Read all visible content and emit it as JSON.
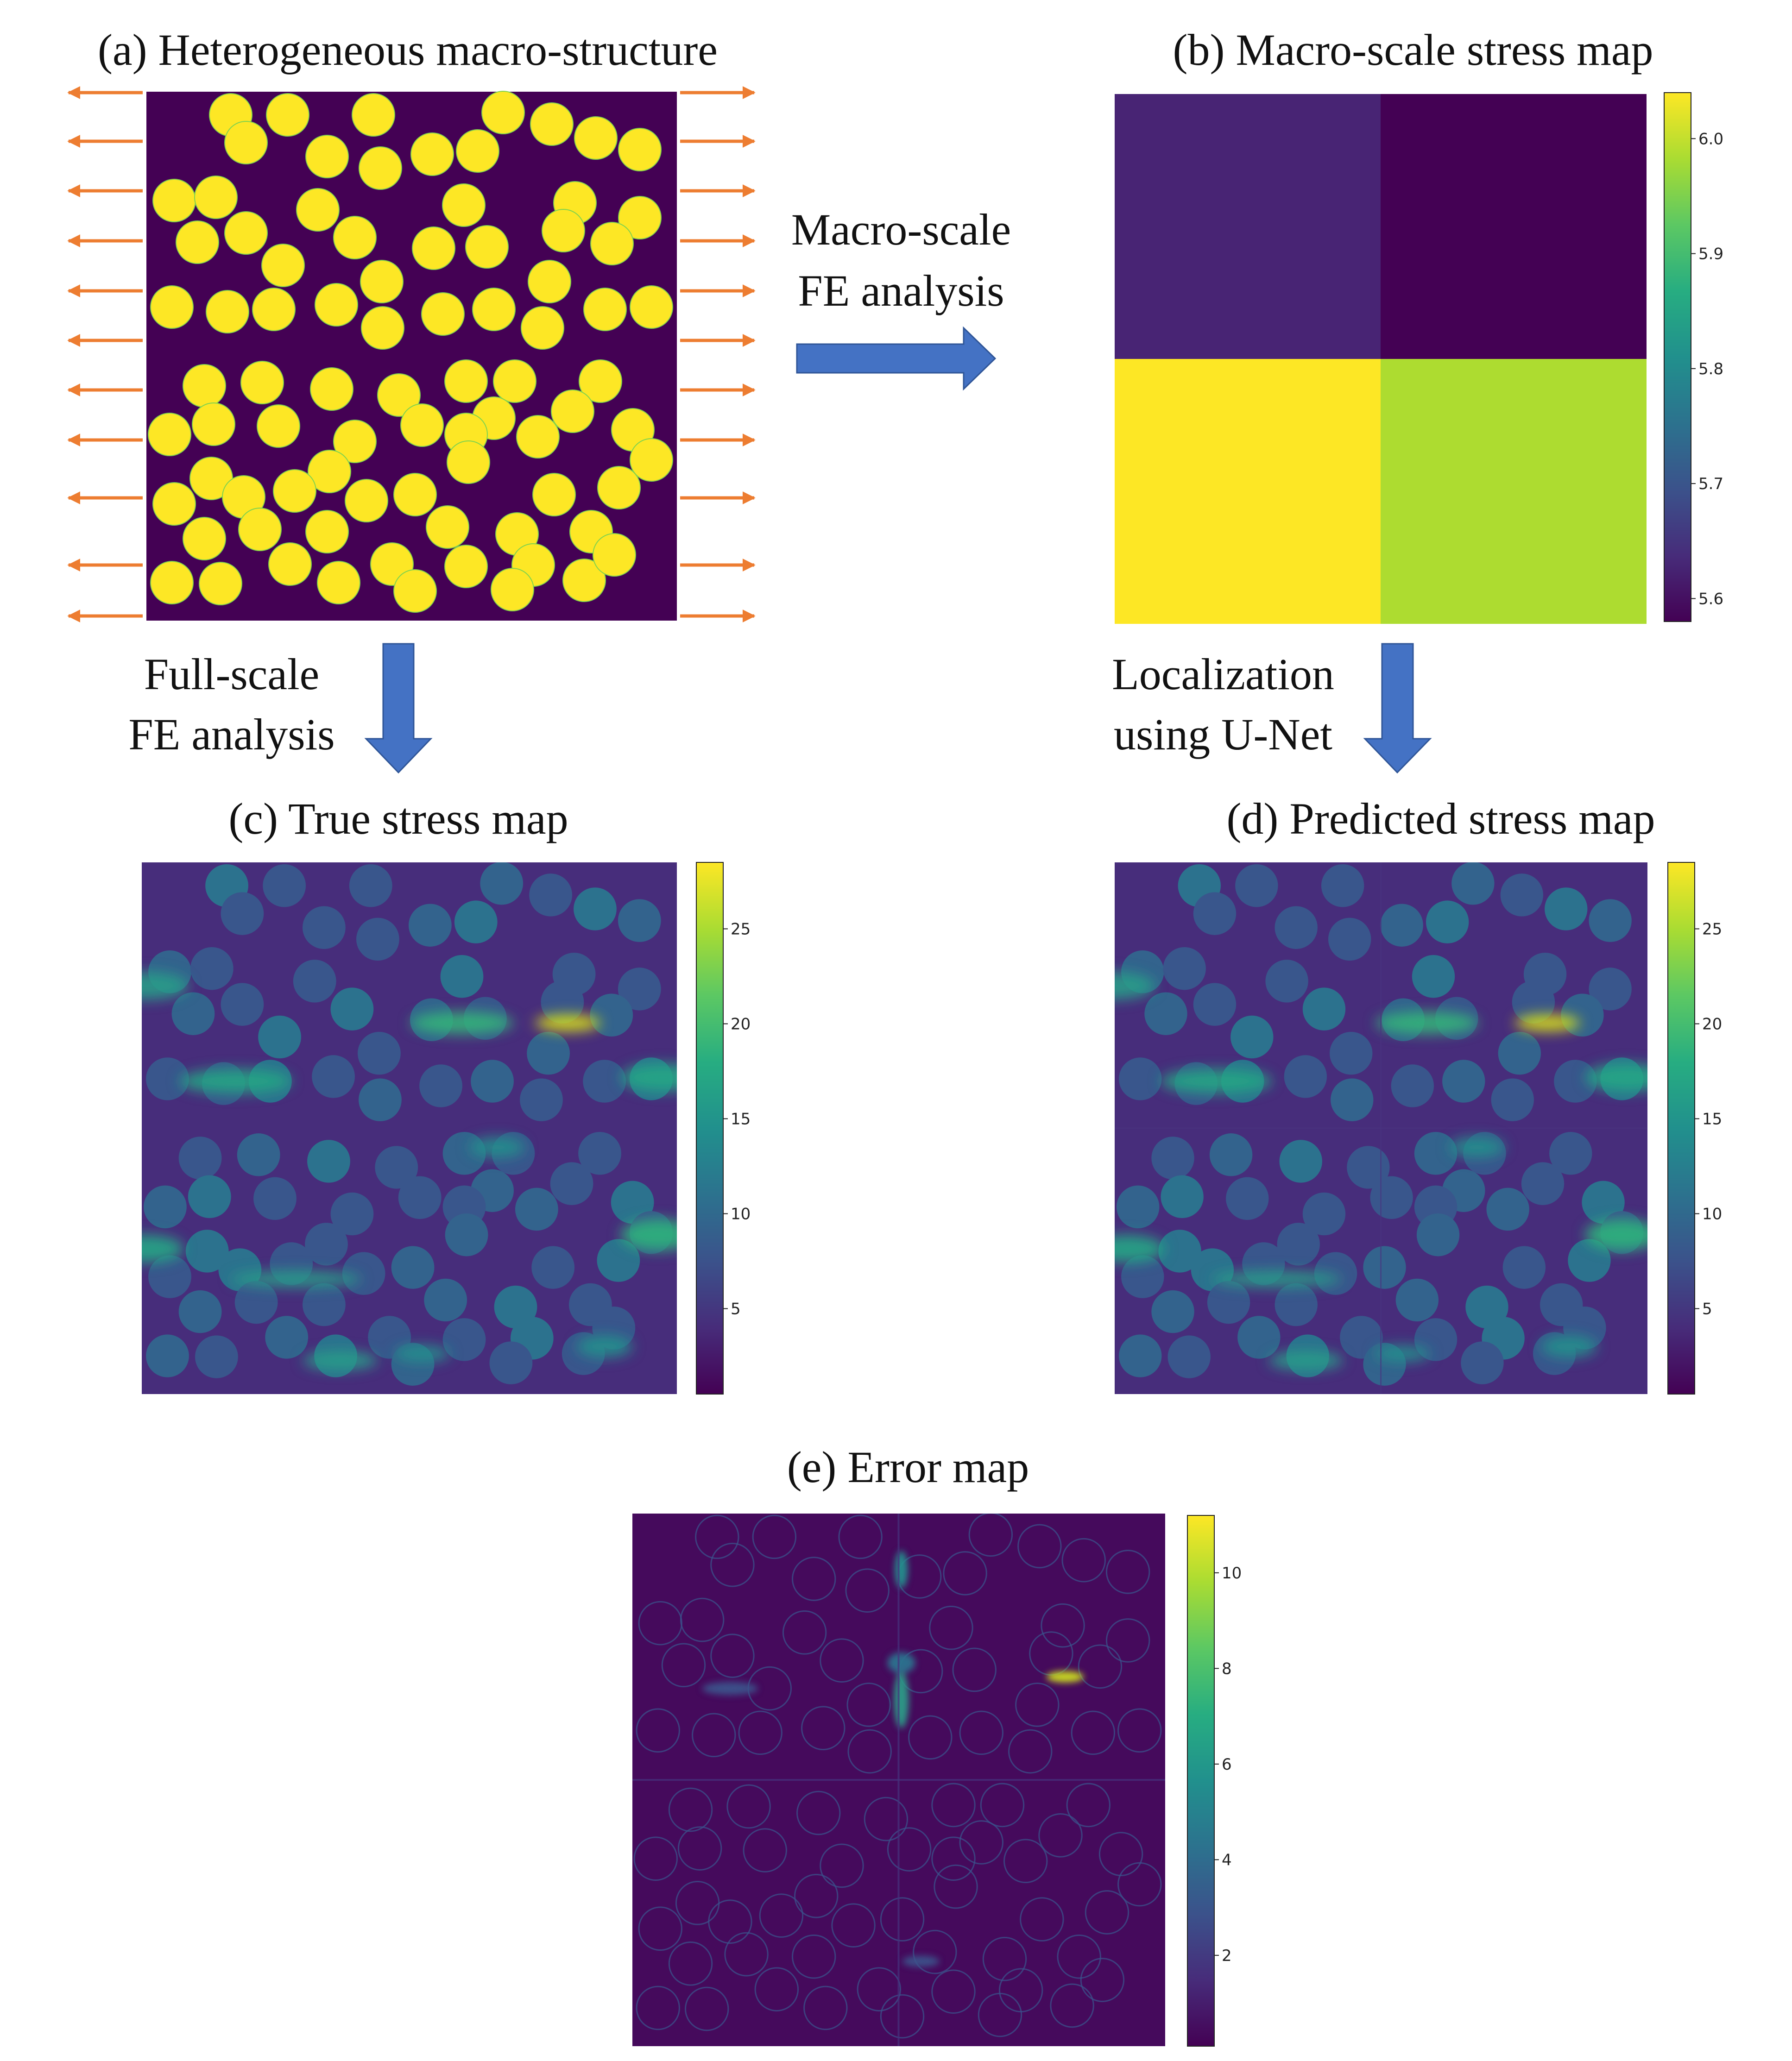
{
  "panels": {
    "a": {
      "title": "(a) Heterogeneous macro-structure"
    },
    "b": {
      "title": "(b) Macro-scale stress map",
      "cell_values": [
        [
          5.65,
          5.58
        ],
        [
          6.04,
          5.95
        ]
      ],
      "colorbar": {
        "min": 5.58,
        "max": 6.04,
        "ticks": [
          "6.0",
          "5.9",
          "5.8",
          "5.7",
          "5.6"
        ],
        "tick_values": [
          6.0,
          5.9,
          5.8,
          5.7,
          5.6
        ]
      }
    },
    "c": {
      "title": "(c) True stress map",
      "colorbar": {
        "min": 0.5,
        "max": 28.5,
        "ticks": [
          "25",
          "20",
          "15",
          "10",
          "5"
        ],
        "tick_values": [
          25,
          20,
          15,
          10,
          5
        ]
      }
    },
    "d": {
      "title": "(d) Predicted stress map",
      "colorbar": {
        "min": 0.5,
        "max": 28.5,
        "ticks": [
          "25",
          "20",
          "15",
          "10",
          "5"
        ],
        "tick_values": [
          25,
          20,
          15,
          10,
          5
        ]
      }
    },
    "e": {
      "title": "(e) Error map",
      "colorbar": {
        "min": 0.1,
        "max": 11.2,
        "ticks": [
          "10",
          "8",
          "6",
          "4",
          "2"
        ],
        "tick_values": [
          10,
          8,
          6,
          4,
          2
        ]
      }
    }
  },
  "steps": {
    "macro_fe": [
      "Macro-scale",
      "FE analysis"
    ],
    "full_fe": [
      "Full-scale",
      "FE analysis"
    ],
    "localization": [
      "Localization",
      "using U-Net"
    ]
  },
  "colors": {
    "matrix": "#440154",
    "inclusion": "#fde725",
    "load_arrow": "#ed7d31",
    "flow_arrow": "#4472c4",
    "colormap": "viridis"
  }
}
